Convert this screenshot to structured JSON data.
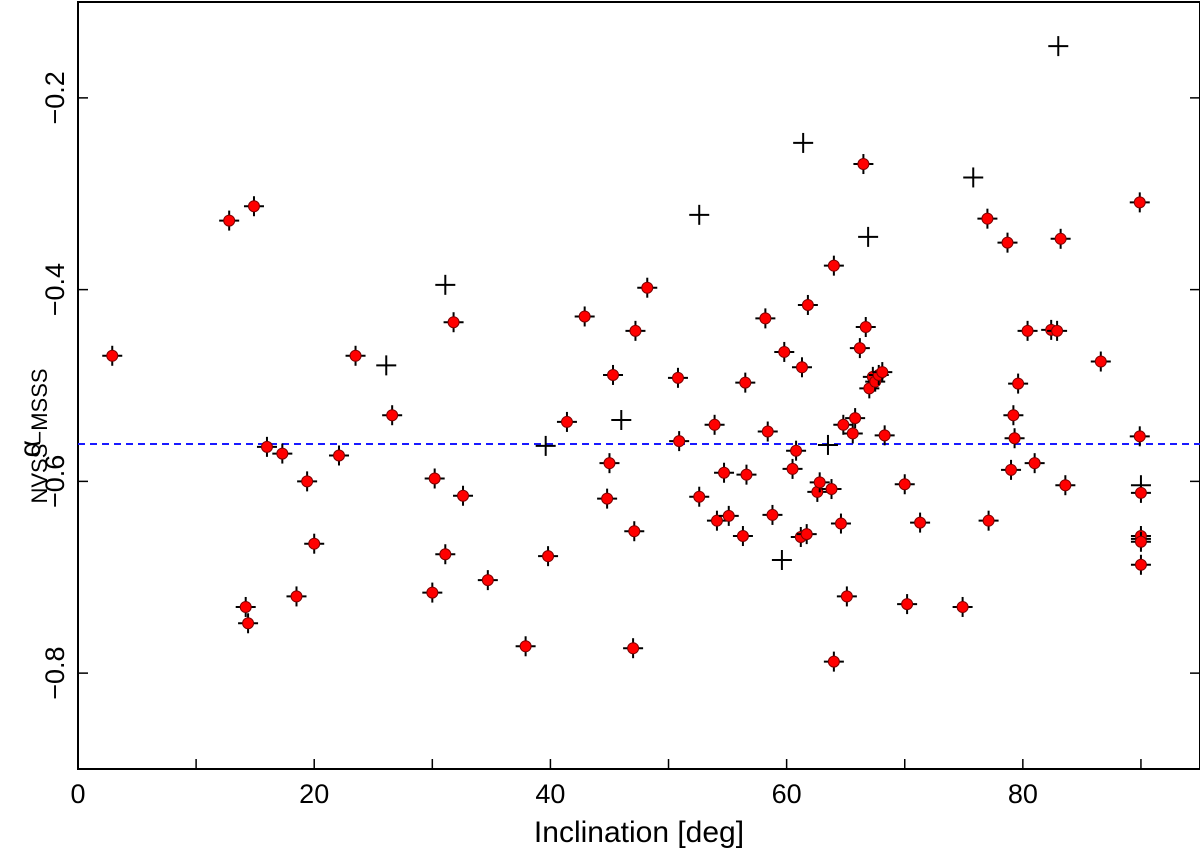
{
  "chart_data": {
    "type": "scatter",
    "title": "",
    "xlabel": "Inclination [deg]",
    "ylabel": {
      "symbol": "α",
      "subscript": "NVSS−MSSS"
    },
    "xlim": [
      0,
      95
    ],
    "ylim": [
      -0.9,
      -0.1
    ],
    "xticks": [
      0,
      20,
      40,
      60,
      80
    ],
    "xticks_minor": [
      10,
      30,
      50,
      70,
      90
    ],
    "yticks": [
      -0.8,
      -0.6,
      -0.4,
      -0.2
    ],
    "ytick_labels": [
      "−0.8",
      "−0.6",
      "−0.4",
      "−0.2"
    ],
    "grid": false,
    "reference_line": {
      "y": -0.561,
      "style": "dashed",
      "color": "#1a1aff"
    },
    "colors": {
      "marker_fill": "#ff0000",
      "marker_edge": "#800000",
      "cross": "#000000"
    },
    "series": [
      {
        "name": "crosses (no marker)",
        "marker": "cross",
        "points": [
          [
            31.1,
            -0.395
          ],
          [
            26.1,
            -0.479
          ],
          [
            46.0,
            -0.536
          ],
          [
            39.6,
            -0.563
          ],
          [
            52.6,
            -0.322
          ],
          [
            59.6,
            -0.682
          ],
          [
            61.4,
            -0.247
          ],
          [
            63.5,
            -0.562
          ],
          [
            66.9,
            -0.345
          ],
          [
            75.8,
            -0.283
          ],
          [
            83.0,
            -0.146
          ],
          [
            90.0,
            -0.604
          ],
          [
            90.0,
            -0.66
          ]
        ]
      },
      {
        "name": "crosses with red marker",
        "marker": "dot",
        "points": [
          [
            2.9,
            -0.469
          ],
          [
            12.8,
            -0.328
          ],
          [
            14.9,
            -0.313
          ],
          [
            14.2,
            -0.731
          ],
          [
            14.4,
            -0.748
          ],
          [
            16.0,
            -0.564
          ],
          [
            17.3,
            -0.571
          ],
          [
            18.5,
            -0.72
          ],
          [
            19.4,
            -0.6
          ],
          [
            20.0,
            -0.665
          ],
          [
            22.1,
            -0.573
          ],
          [
            23.5,
            -0.469
          ],
          [
            26.6,
            -0.531
          ],
          [
            30.0,
            -0.716
          ],
          [
            30.2,
            -0.597
          ],
          [
            31.1,
            -0.676
          ],
          [
            31.8,
            -0.434
          ],
          [
            32.6,
            -0.615
          ],
          [
            34.7,
            -0.703
          ],
          [
            37.9,
            -0.772
          ],
          [
            39.8,
            -0.678
          ],
          [
            41.4,
            -0.538
          ],
          [
            42.9,
            -0.428
          ],
          [
            44.8,
            -0.618
          ],
          [
            45.0,
            -0.581
          ],
          [
            45.3,
            -0.489
          ],
          [
            47.0,
            -0.774
          ],
          [
            47.1,
            -0.652
          ],
          [
            47.2,
            -0.443
          ],
          [
            48.2,
            -0.398
          ],
          [
            50.8,
            -0.492
          ],
          [
            50.9,
            -0.558
          ],
          [
            52.6,
            -0.616
          ],
          [
            53.9,
            -0.541
          ],
          [
            54.1,
            -0.641
          ],
          [
            54.7,
            -0.591
          ],
          [
            55.1,
            -0.636
          ],
          [
            56.3,
            -0.657
          ],
          [
            56.5,
            -0.497
          ],
          [
            56.6,
            -0.593
          ],
          [
            58.2,
            -0.43
          ],
          [
            58.4,
            -0.548
          ],
          [
            58.8,
            -0.635
          ],
          [
            59.8,
            -0.465
          ],
          [
            60.5,
            -0.587
          ],
          [
            60.8,
            -0.568
          ],
          [
            61.2,
            -0.658
          ],
          [
            61.3,
            -0.481
          ],
          [
            61.7,
            -0.655
          ],
          [
            61.8,
            -0.416
          ],
          [
            62.6,
            -0.611
          ],
          [
            62.8,
            -0.601
          ],
          [
            63.8,
            -0.608
          ],
          [
            64.0,
            -0.788
          ],
          [
            64.0,
            -0.375
          ],
          [
            64.6,
            -0.644
          ],
          [
            64.8,
            -0.541
          ],
          [
            65.1,
            -0.72
          ],
          [
            65.6,
            -0.55
          ],
          [
            65.8,
            -0.534
          ],
          [
            66.2,
            -0.461
          ],
          [
            66.5,
            -0.269
          ],
          [
            66.7,
            -0.439
          ],
          [
            67.0,
            -0.503
          ],
          [
            67.3,
            -0.491
          ],
          [
            67.5,
            -0.496
          ],
          [
            67.8,
            -0.489
          ],
          [
            68.1,
            -0.486
          ],
          [
            68.3,
            -0.552
          ],
          [
            70.0,
            -0.603
          ],
          [
            70.2,
            -0.728
          ],
          [
            71.3,
            -0.643
          ],
          [
            74.9,
            -0.731
          ],
          [
            77.0,
            -0.326
          ],
          [
            77.1,
            -0.641
          ],
          [
            78.7,
            -0.351
          ],
          [
            79.0,
            -0.588
          ],
          [
            79.2,
            -0.531
          ],
          [
            79.3,
            -0.555
          ],
          [
            79.6,
            -0.498
          ],
          [
            80.4,
            -0.443
          ],
          [
            81.0,
            -0.581
          ],
          [
            82.4,
            -0.442
          ],
          [
            82.9,
            -0.443
          ],
          [
            83.2,
            -0.347
          ],
          [
            83.6,
            -0.604
          ],
          [
            86.6,
            -0.475
          ],
          [
            89.9,
            -0.309
          ],
          [
            89.9,
            -0.553
          ],
          [
            90.0,
            -0.612
          ],
          [
            90.0,
            -0.657
          ],
          [
            90.0,
            -0.663
          ],
          [
            90.0,
            -0.687
          ]
        ]
      }
    ]
  }
}
